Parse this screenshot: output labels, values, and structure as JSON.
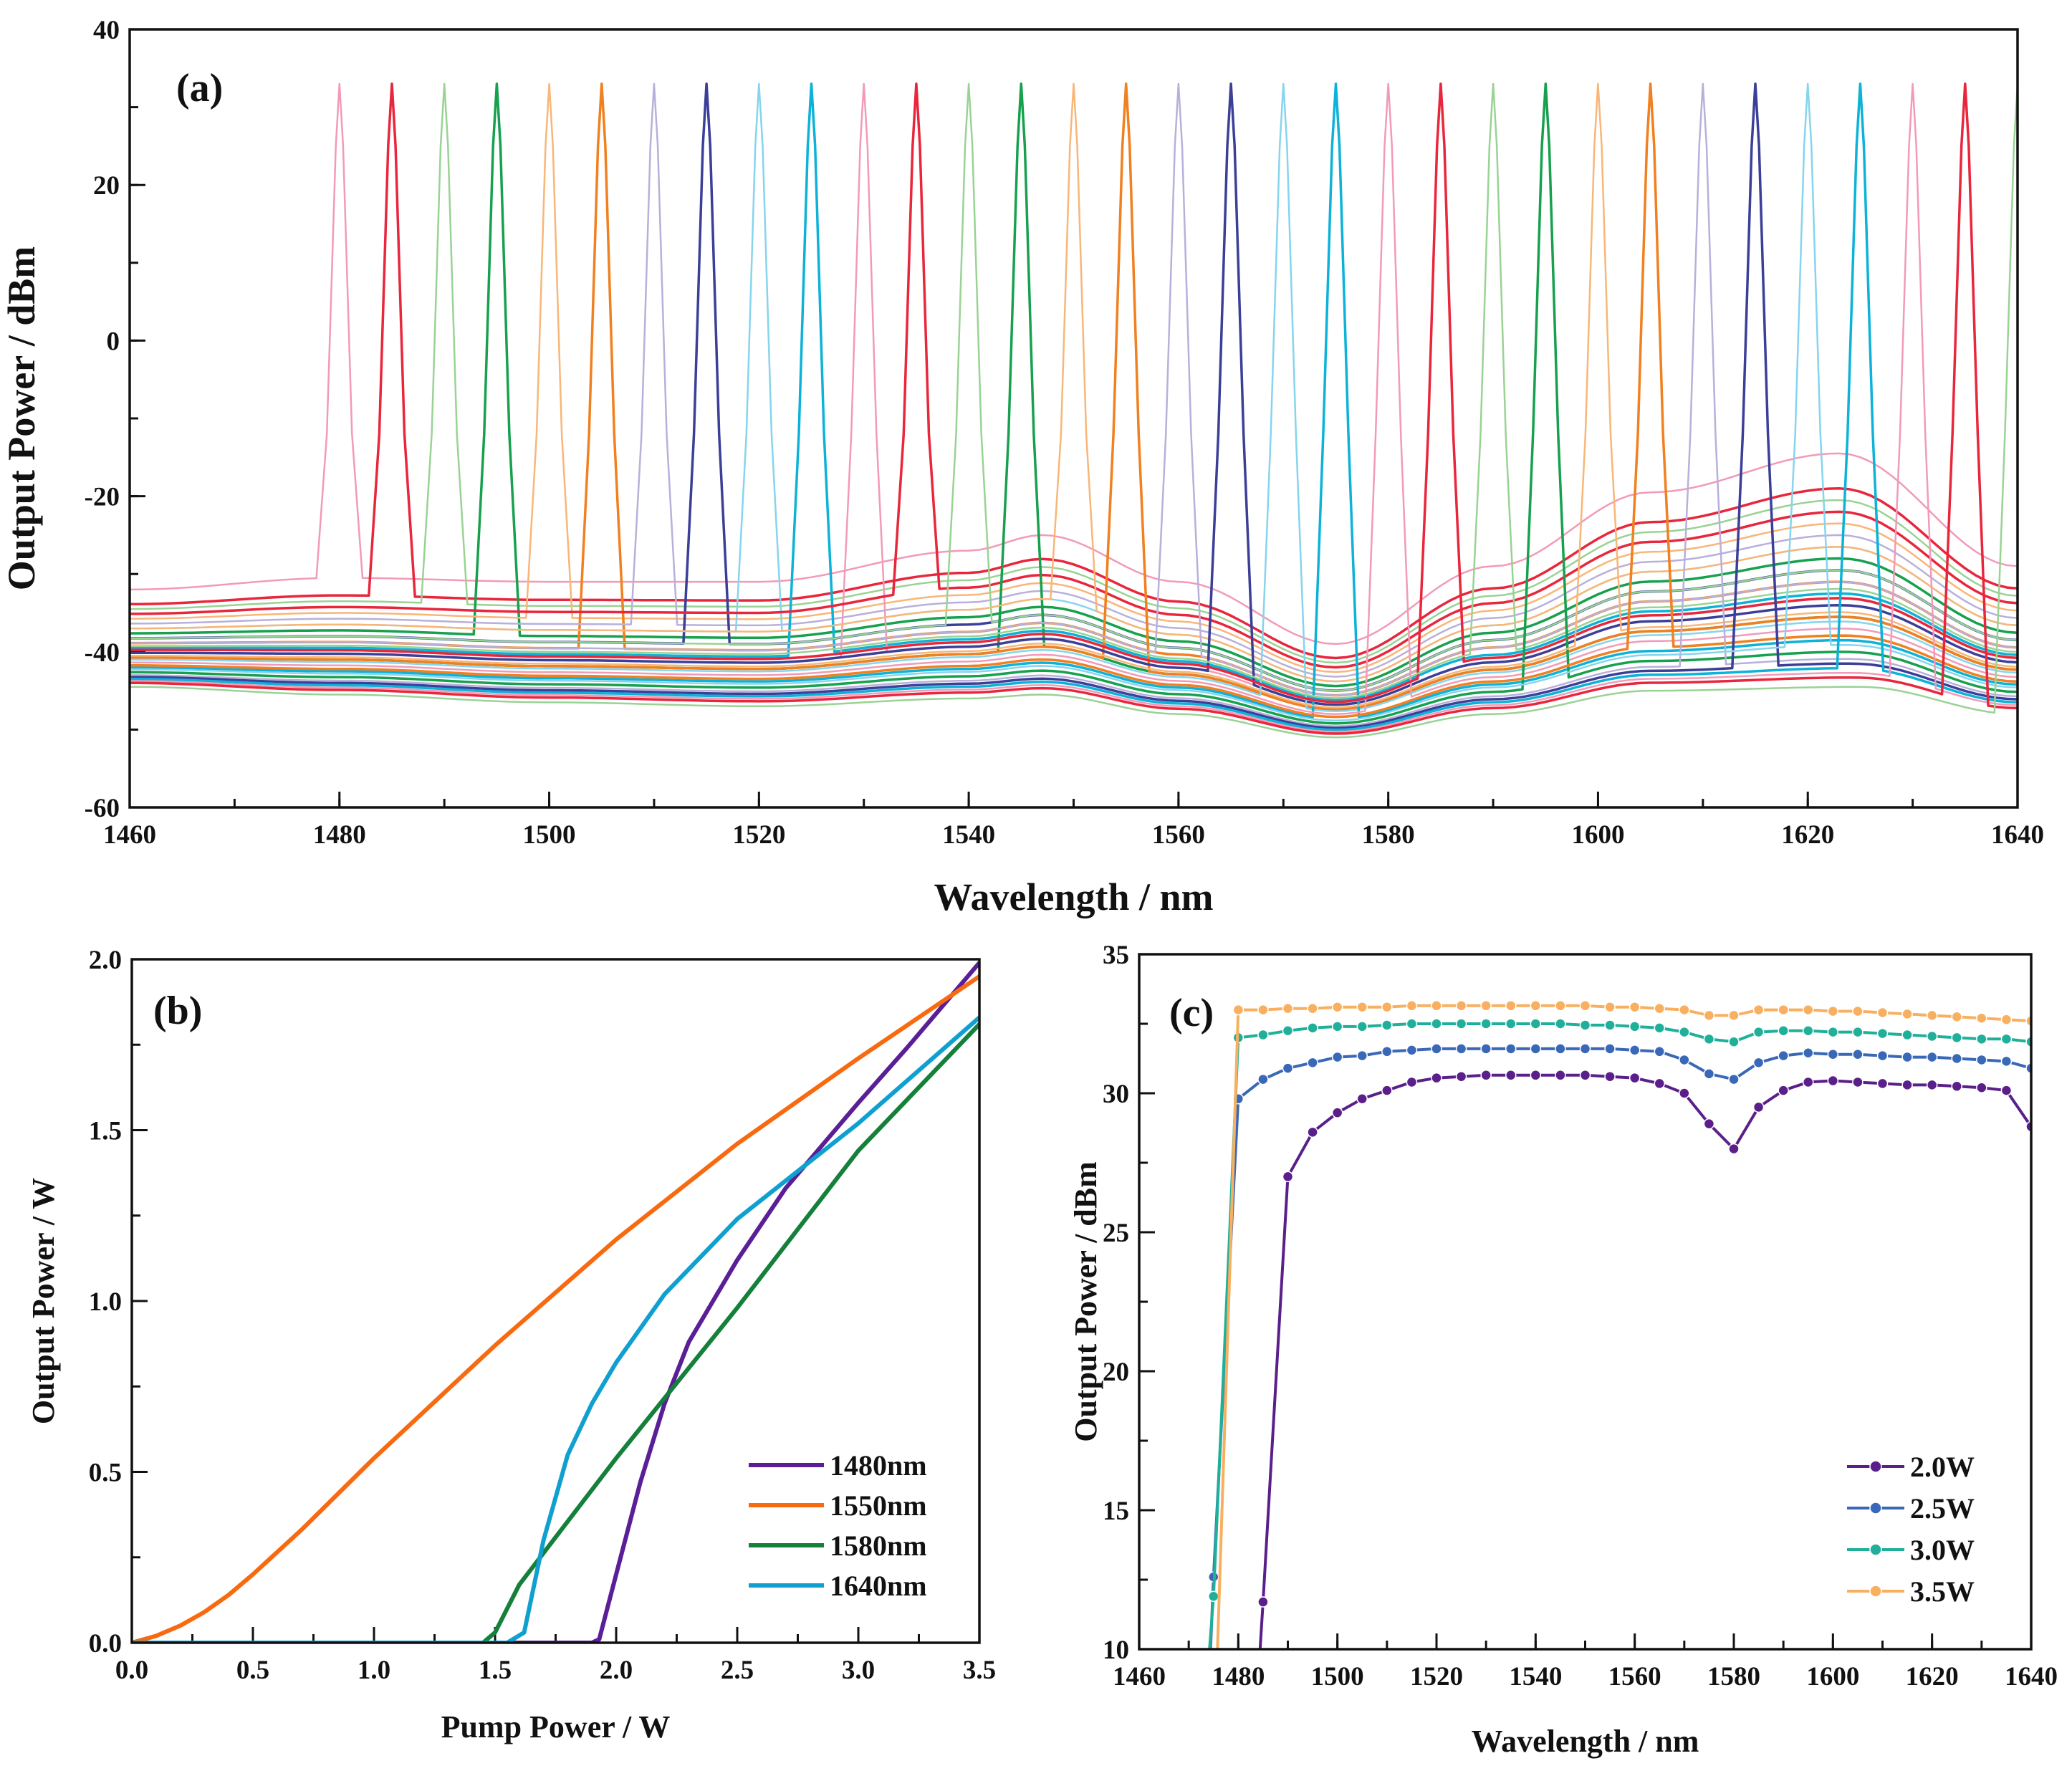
{
  "chart_data": [
    {
      "id": "a",
      "type": "line",
      "panel_label": "(a)",
      "xlabel": "Wavelength / nm",
      "ylabel": "Output Power / dBm",
      "xlim": [
        1460,
        1640
      ],
      "ylim": [
        -60,
        40
      ],
      "xticks": [
        1460,
        1480,
        1500,
        1520,
        1540,
        1560,
        1580,
        1600,
        1620,
        1640
      ],
      "yticks": [
        -60,
        -40,
        -20,
        0,
        20,
        40
      ],
      "x_minor_step": 10,
      "y_minor_step": 10,
      "peak_power_dBm": 33,
      "peak_wavelengths": [
        1480,
        1485,
        1490,
        1495,
        1500,
        1505,
        1510,
        1515,
        1520,
        1525,
        1530,
        1535,
        1540,
        1545,
        1550,
        1555,
        1560,
        1565,
        1570,
        1575,
        1580,
        1585,
        1590,
        1595,
        1600,
        1605,
        1610,
        1615,
        1620,
        1625,
        1630,
        1635,
        1640
      ],
      "background_level": [
        1.0,
        0.85,
        0.8,
        0.55,
        0.7,
        0.45,
        0.65,
        0.5,
        0.6,
        0.4,
        0.35,
        0.75,
        0.5,
        0.3,
        0.6,
        0.3,
        0.45,
        0.35,
        0.28,
        0.2,
        0.25,
        0.38,
        0.42,
        0.15,
        0.32,
        0.22,
        0.12,
        0.1,
        0.18,
        0.08,
        0.06,
        0.04,
        0.0
      ],
      "background_top": [
        [
          1460,
          -32
        ],
        [
          1480,
          -30.5
        ],
        [
          1500,
          -31
        ],
        [
          1520,
          -31
        ],
        [
          1540,
          -27
        ],
        [
          1547,
          -25
        ],
        [
          1560,
          -31
        ],
        [
          1575,
          -39
        ],
        [
          1590,
          -29
        ],
        [
          1605,
          -19.5
        ],
        [
          1623,
          -14.5
        ],
        [
          1640,
          -29
        ]
      ],
      "background_bottom": [
        [
          1460,
          -44.5
        ],
        [
          1480,
          -45.5
        ],
        [
          1500,
          -46.5
        ],
        [
          1520,
          -47
        ],
        [
          1540,
          -46
        ],
        [
          1547,
          -45.5
        ],
        [
          1560,
          -48
        ],
        [
          1575,
          -51
        ],
        [
          1590,
          -48
        ],
        [
          1605,
          -45
        ],
        [
          1625,
          -44.5
        ],
        [
          1640,
          -48
        ]
      ],
      "palette": [
        "#f29ab8",
        "#e8263c",
        "#99d394",
        "#17a04e",
        "#f8b678",
        "#f08020",
        "#b8b0da",
        "#3b3f98",
        "#86d4ee",
        "#0db2d8"
      ]
    },
    {
      "id": "b",
      "type": "line",
      "panel_label": "(b)",
      "xlabel": "Pump Power / W",
      "ylabel": "Output Power / W",
      "xlim": [
        0,
        3.5
      ],
      "ylim": [
        0,
        2.0
      ],
      "xticks": [
        "0.0",
        "0.5",
        "1.0",
        "1.5",
        "2.0",
        "2.5",
        "3.0",
        "3.5"
      ],
      "yticks": [
        "0.0",
        "0.5",
        "1.0",
        "1.5",
        "2.0"
      ],
      "x_minor_step": 0.25,
      "y_minor_step": 0.25,
      "legend_position": "bottom-right",
      "series": [
        {
          "name": "1480nm",
          "color": "#5a1f96",
          "points": [
            [
              0,
              0
            ],
            [
              1.9,
              0
            ],
            [
              1.93,
              0.01
            ],
            [
              2.0,
              0.2
            ],
            [
              2.1,
              0.47
            ],
            [
              2.2,
              0.7
            ],
            [
              2.3,
              0.88
            ],
            [
              2.4,
              1.0
            ],
            [
              2.5,
              1.12
            ],
            [
              2.7,
              1.33
            ],
            [
              3.0,
              1.58
            ],
            [
              3.2,
              1.74
            ],
            [
              3.5,
              1.99
            ]
          ]
        },
        {
          "name": "1550nm",
          "color": "#f86a10",
          "points": [
            [
              0,
              0
            ],
            [
              0.1,
              0.02
            ],
            [
              0.2,
              0.05
            ],
            [
              0.3,
              0.09
            ],
            [
              0.4,
              0.14
            ],
            [
              0.5,
              0.2
            ],
            [
              0.7,
              0.33
            ],
            [
              1.0,
              0.54
            ],
            [
              1.5,
              0.87
            ],
            [
              2.0,
              1.18
            ],
            [
              2.5,
              1.46
            ],
            [
              3.0,
              1.71
            ],
            [
              3.5,
              1.95
            ]
          ]
        },
        {
          "name": "1580nm",
          "color": "#14803a",
          "points": [
            [
              0,
              0
            ],
            [
              1.45,
              0
            ],
            [
              1.5,
              0.03
            ],
            [
              1.6,
              0.17
            ],
            [
              2.0,
              0.54
            ],
            [
              2.5,
              0.98
            ],
            [
              3.0,
              1.44
            ],
            [
              3.5,
              1.81
            ]
          ]
        },
        {
          "name": "1640nm",
          "color": "#10a0d0",
          "points": [
            [
              0,
              0
            ],
            [
              1.55,
              0
            ],
            [
              1.62,
              0.03
            ],
            [
              1.7,
              0.3
            ],
            [
              1.8,
              0.55
            ],
            [
              1.9,
              0.7
            ],
            [
              2.0,
              0.82
            ],
            [
              2.2,
              1.02
            ],
            [
              2.5,
              1.24
            ],
            [
              3.0,
              1.52
            ],
            [
              3.5,
              1.83
            ]
          ]
        }
      ]
    },
    {
      "id": "c",
      "type": "line",
      "panel_label": "(c)",
      "xlabel": "Wavelength / nm",
      "ylabel": "Output Power / dBm",
      "xlim": [
        1460,
        1640
      ],
      "ylim": [
        10,
        35
      ],
      "xticks": [
        1460,
        1480,
        1500,
        1520,
        1540,
        1560,
        1580,
        1600,
        1620,
        1640
      ],
      "yticks": [
        10,
        15,
        20,
        25,
        30,
        35
      ],
      "x_minor_step": 10,
      "y_minor_step": 2.5,
      "legend_position": "bottom-right",
      "series": [
        {
          "name": "2.0W",
          "color": "#5a1f8a",
          "start": [
            1484.4,
            10
          ],
          "x": [
            1485,
            1490,
            1495,
            1500,
            1505,
            1510,
            1515,
            1520,
            1525,
            1530,
            1535,
            1540,
            1545,
            1550,
            1555,
            1560,
            1565,
            1570,
            1575,
            1580,
            1585,
            1590,
            1595,
            1600,
            1605,
            1610,
            1615,
            1620,
            1625,
            1630,
            1635,
            1640
          ],
          "y": [
            11.7,
            27.0,
            28.6,
            29.3,
            29.8,
            30.1,
            30.4,
            30.55,
            30.6,
            30.65,
            30.65,
            30.65,
            30.65,
            30.65,
            30.6,
            30.55,
            30.35,
            30.0,
            28.9,
            28.0,
            29.5,
            30.1,
            30.4,
            30.45,
            30.4,
            30.35,
            30.3,
            30.3,
            30.25,
            30.2,
            30.1,
            28.8
          ]
        },
        {
          "name": "2.5W",
          "color": "#3a68b8",
          "start": [
            1474.4,
            10
          ],
          "x": [
            1475,
            1480,
            1485,
            1490,
            1495,
            1500,
            1505,
            1510,
            1515,
            1520,
            1525,
            1530,
            1535,
            1540,
            1545,
            1550,
            1555,
            1560,
            1565,
            1570,
            1575,
            1580,
            1585,
            1590,
            1595,
            1600,
            1605,
            1610,
            1615,
            1620,
            1625,
            1630,
            1635,
            1640
          ],
          "y": [
            12.6,
            29.8,
            30.5,
            30.9,
            31.1,
            31.3,
            31.35,
            31.5,
            31.55,
            31.6,
            31.6,
            31.6,
            31.6,
            31.6,
            31.6,
            31.6,
            31.6,
            31.55,
            31.5,
            31.2,
            30.7,
            30.5,
            31.1,
            31.35,
            31.45,
            31.4,
            31.4,
            31.35,
            31.3,
            31.3,
            31.25,
            31.2,
            31.15,
            30.9
          ]
        },
        {
          "name": "3.0W",
          "color": "#20b09a",
          "start": [
            1474.2,
            10
          ],
          "x": [
            1475,
            1480,
            1485,
            1490,
            1495,
            1500,
            1505,
            1510,
            1515,
            1520,
            1525,
            1530,
            1535,
            1540,
            1545,
            1550,
            1555,
            1560,
            1565,
            1570,
            1575,
            1580,
            1585,
            1590,
            1595,
            1600,
            1605,
            1610,
            1615,
            1620,
            1625,
            1630,
            1635,
            1640
          ],
          "y": [
            11.9,
            32.0,
            32.1,
            32.25,
            32.35,
            32.4,
            32.4,
            32.45,
            32.5,
            32.5,
            32.5,
            32.5,
            32.5,
            32.5,
            32.5,
            32.45,
            32.45,
            32.4,
            32.35,
            32.2,
            31.95,
            31.85,
            32.2,
            32.25,
            32.25,
            32.2,
            32.2,
            32.15,
            32.1,
            32.05,
            32.0,
            31.95,
            31.95,
            31.85
          ]
        },
        {
          "name": "3.5W",
          "color": "#f8b060",
          "start": [
            1475.8,
            10
          ],
          "x": [
            1480,
            1485,
            1490,
            1495,
            1500,
            1505,
            1510,
            1515,
            1520,
            1525,
            1530,
            1535,
            1540,
            1545,
            1550,
            1555,
            1560,
            1565,
            1570,
            1575,
            1580,
            1585,
            1590,
            1595,
            1600,
            1605,
            1610,
            1615,
            1620,
            1625,
            1630,
            1635,
            1640
          ],
          "y": [
            33.0,
            33.0,
            33.05,
            33.05,
            33.1,
            33.1,
            33.1,
            33.15,
            33.15,
            33.15,
            33.15,
            33.15,
            33.15,
            33.15,
            33.15,
            33.1,
            33.1,
            33.05,
            33.0,
            32.8,
            32.8,
            33.0,
            33.0,
            33.0,
            32.95,
            32.95,
            32.9,
            32.85,
            32.8,
            32.75,
            32.7,
            32.65,
            32.6
          ]
        }
      ]
    }
  ]
}
